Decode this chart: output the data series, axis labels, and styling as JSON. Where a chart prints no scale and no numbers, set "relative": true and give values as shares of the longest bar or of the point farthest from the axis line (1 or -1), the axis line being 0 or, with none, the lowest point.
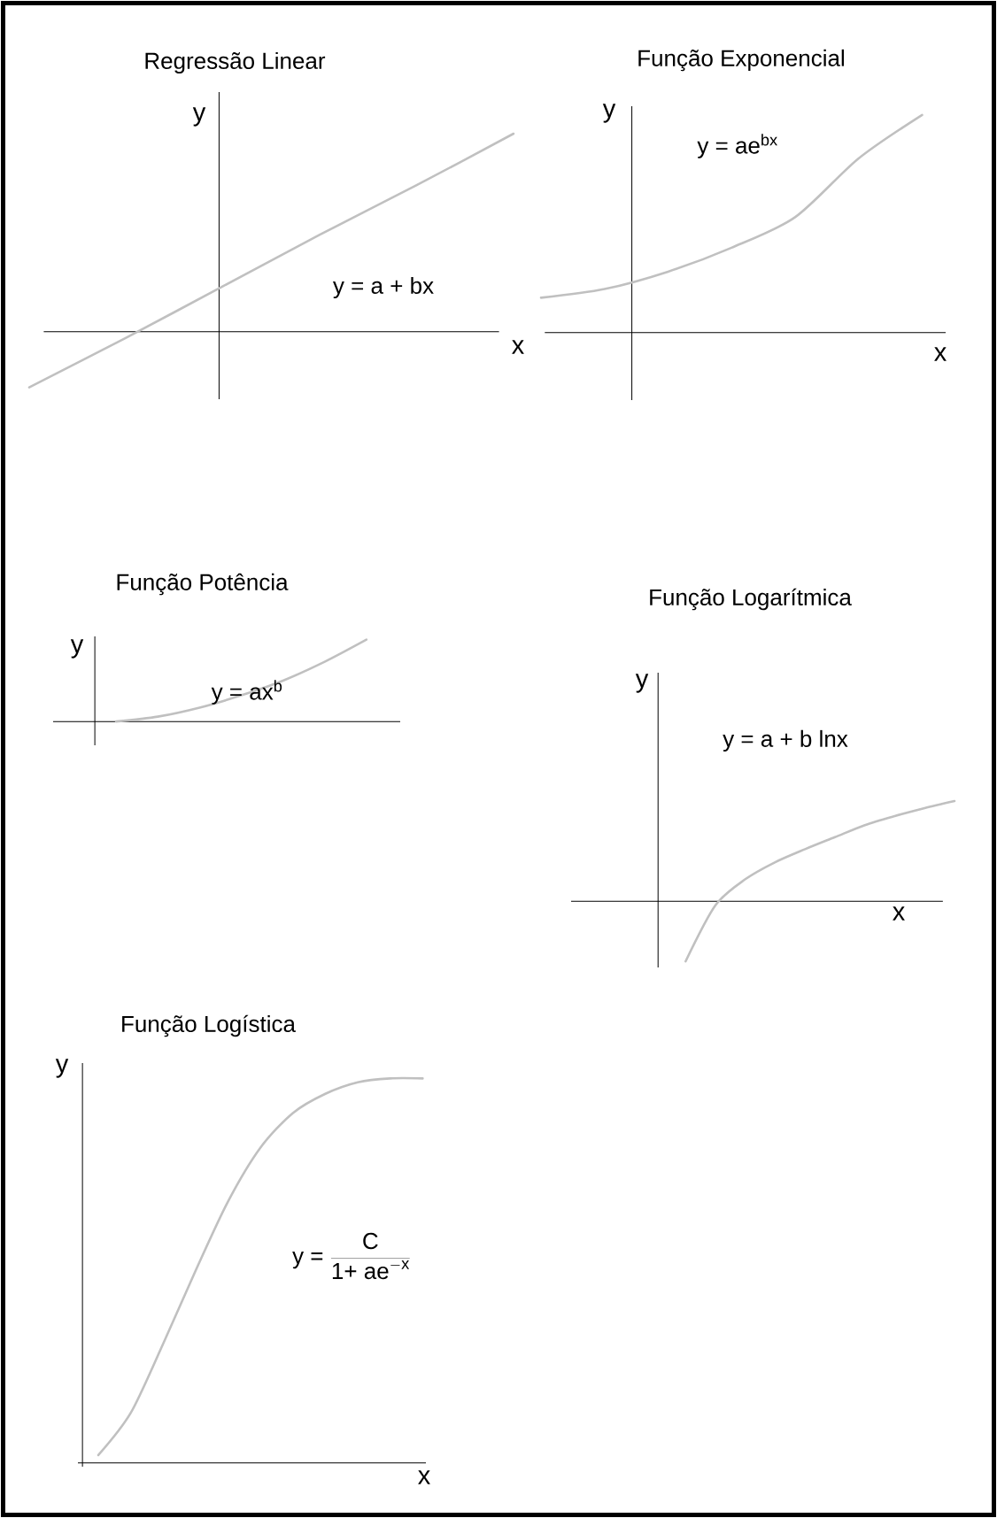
{
  "chart_data": [
    {
      "type": "line",
      "title": "Regressão Linear",
      "xlabel": "x",
      "ylabel": "y",
      "annotations": [
        "y = a + bx"
      ],
      "relative": true,
      "categories": [
        null,
        null,
        null,
        null,
        null,
        null
      ],
      "color": "#c0c0c0",
      "values": [
        -0.28,
        -0.03,
        0.23,
        0.49,
        0.74,
        1.0
      ]
    },
    {
      "type": "line",
      "title": "Função Exponencial",
      "xlabel": "x",
      "ylabel": "y",
      "annotations": [
        "y = ae$^{bx}$"
      ],
      "relative": true,
      "categories": [
        null,
        null,
        null,
        null,
        null,
        null,
        null
      ],
      "color": "#c0c0c0",
      "values": [
        0.16,
        0.2,
        0.28,
        0.39,
        0.53,
        0.8,
        1.0
      ]
    },
    {
      "type": "line",
      "title": "Função Potência",
      "ylabel": "y",
      "annotations": [
        "y = ax$^{b}$"
      ],
      "relative": true,
      "categories": [
        null,
        null,
        null,
        null,
        null,
        null,
        null
      ],
      "color": "#c0c0c0",
      "values": [
        0,
        0.06,
        0.17,
        0.32,
        0.5,
        0.73,
        1.0
      ]
    },
    {
      "type": "line",
      "title": "Função Logarítmica",
      "xlabel": "x",
      "ylabel": "y",
      "annotations": [
        "y = a + b lnx"
      ],
      "relative": true,
      "categories": [
        null,
        null,
        null,
        null,
        null,
        null,
        null,
        null,
        null,
        null
      ],
      "color": "#c0c0c0",
      "values": [
        -0.6,
        -0.04,
        0.22,
        0.39,
        0.52,
        0.64,
        0.76,
        0.85,
        0.93,
        1.0
      ]
    },
    {
      "type": "line",
      "title": "Função Logística",
      "xlabel": "x",
      "ylabel": "y",
      "annotations": [
        "\\mbox{y = }\\frac{\\mbox{C}}{\\mbox{1+ ae}^{\\mathrm{-x}}}"
      ],
      "relative": true,
      "categories": [
        null,
        null,
        null,
        null,
        null,
        null,
        null,
        null,
        null,
        null,
        null
      ],
      "color": "#c0c0c0",
      "values": [
        0.02,
        0.13,
        0.31,
        0.5,
        0.68,
        0.82,
        0.91,
        0.96,
        0.99,
        1.0,
        1.0
      ]
    }
  ]
}
